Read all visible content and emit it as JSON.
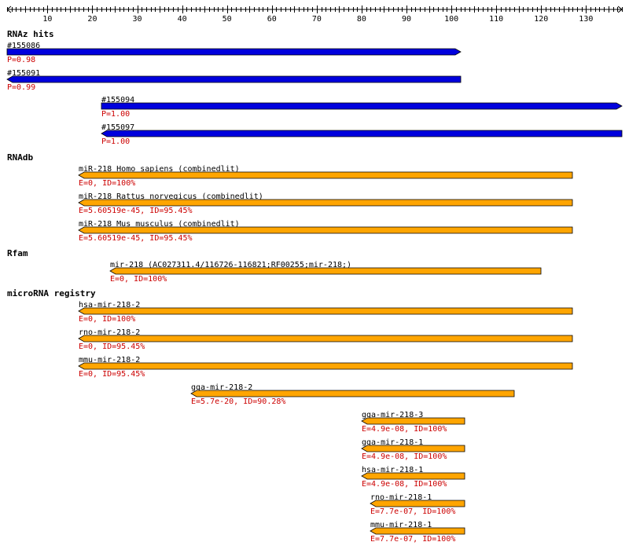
{
  "ruler": {
    "min": 1,
    "max": 138,
    "tick_labels": [
      "10",
      "20",
      "30",
      "40",
      "50",
      "60",
      "70",
      "80",
      "90",
      "100",
      "110",
      "120",
      "130"
    ]
  },
  "colors": {
    "rnaz": "#0000dd",
    "feature": "#ffa500",
    "label": "#000000",
    "stat": "#cc0000"
  },
  "sections": [
    {
      "title": "RNAz hits",
      "color_key": "rnaz",
      "features": [
        {
          "label": "#155086",
          "stat": "P=0.98",
          "start": 1,
          "end": 102,
          "strand": "+"
        },
        {
          "label": "#155091",
          "stat": "P=0.99",
          "start": 1,
          "end": 102,
          "strand": "-"
        },
        {
          "label": "#155094",
          "stat": "P=1.00",
          "start": 22,
          "end": 138,
          "strand": "+"
        },
        {
          "label": "#155097",
          "stat": "P=1.00",
          "start": 22,
          "end": 138,
          "strand": "-"
        }
      ]
    },
    {
      "title": "RNAdb",
      "color_key": "feature",
      "features": [
        {
          "label": "miR-218 Homo sapiens (combinedlit)",
          "stat": "E=0, ID=100%",
          "start": 17,
          "end": 127,
          "strand": "-"
        },
        {
          "label": "miR-218 Rattus norvegicus (combinedlit)",
          "stat": "E=5.60519e-45, ID=95.45%",
          "start": 17,
          "end": 127,
          "strand": "-"
        },
        {
          "label": "miR-218 Mus musculus (combinedlit)",
          "stat": "E=5.60519e-45, ID=95.45%",
          "start": 17,
          "end": 127,
          "strand": "-"
        }
      ]
    },
    {
      "title": "Rfam",
      "color_key": "feature",
      "features": [
        {
          "label": "mir-218 (AC027311.4/116726-116821;RF00255;mir-218;)",
          "stat": "E=0, ID=100%",
          "start": 24,
          "end": 120,
          "strand": "-"
        }
      ]
    },
    {
      "title": "microRNA registry",
      "color_key": "feature",
      "features": [
        {
          "label": "hsa-mir-218-2",
          "stat": "E=0, ID=100%",
          "start": 17,
          "end": 127,
          "strand": "-"
        },
        {
          "label": "rno-mir-218-2",
          "stat": "E=0, ID=95.45%",
          "start": 17,
          "end": 127,
          "strand": "-"
        },
        {
          "label": "mmu-mir-218-2",
          "stat": "E=0, ID=95.45%",
          "start": 17,
          "end": 127,
          "strand": "-"
        },
        {
          "label": "gga-mir-218-2",
          "stat": "E=5.7e-20, ID=90.28%",
          "start": 42,
          "end": 114,
          "strand": "-"
        },
        {
          "label": "gga-mir-218-3",
          "stat": "E=4.9e-08, ID=100%",
          "start": 80,
          "end": 103,
          "strand": "-"
        },
        {
          "label": "gga-mir-218-1",
          "stat": "E=4.9e-08, ID=100%",
          "start": 80,
          "end": 103,
          "strand": "-"
        },
        {
          "label": "hsa-mir-218-1",
          "stat": "E=4.9e-08, ID=100%",
          "start": 80,
          "end": 103,
          "strand": "-"
        },
        {
          "label": "rno-mir-218-1",
          "stat": "E=7.7e-07, ID=100%",
          "start": 82,
          "end": 103,
          "strand": "-"
        },
        {
          "label": "mmu-mir-218-1",
          "stat": "E=7.7e-07, ID=100%",
          "start": 82,
          "end": 103,
          "strand": "-"
        }
      ]
    }
  ]
}
